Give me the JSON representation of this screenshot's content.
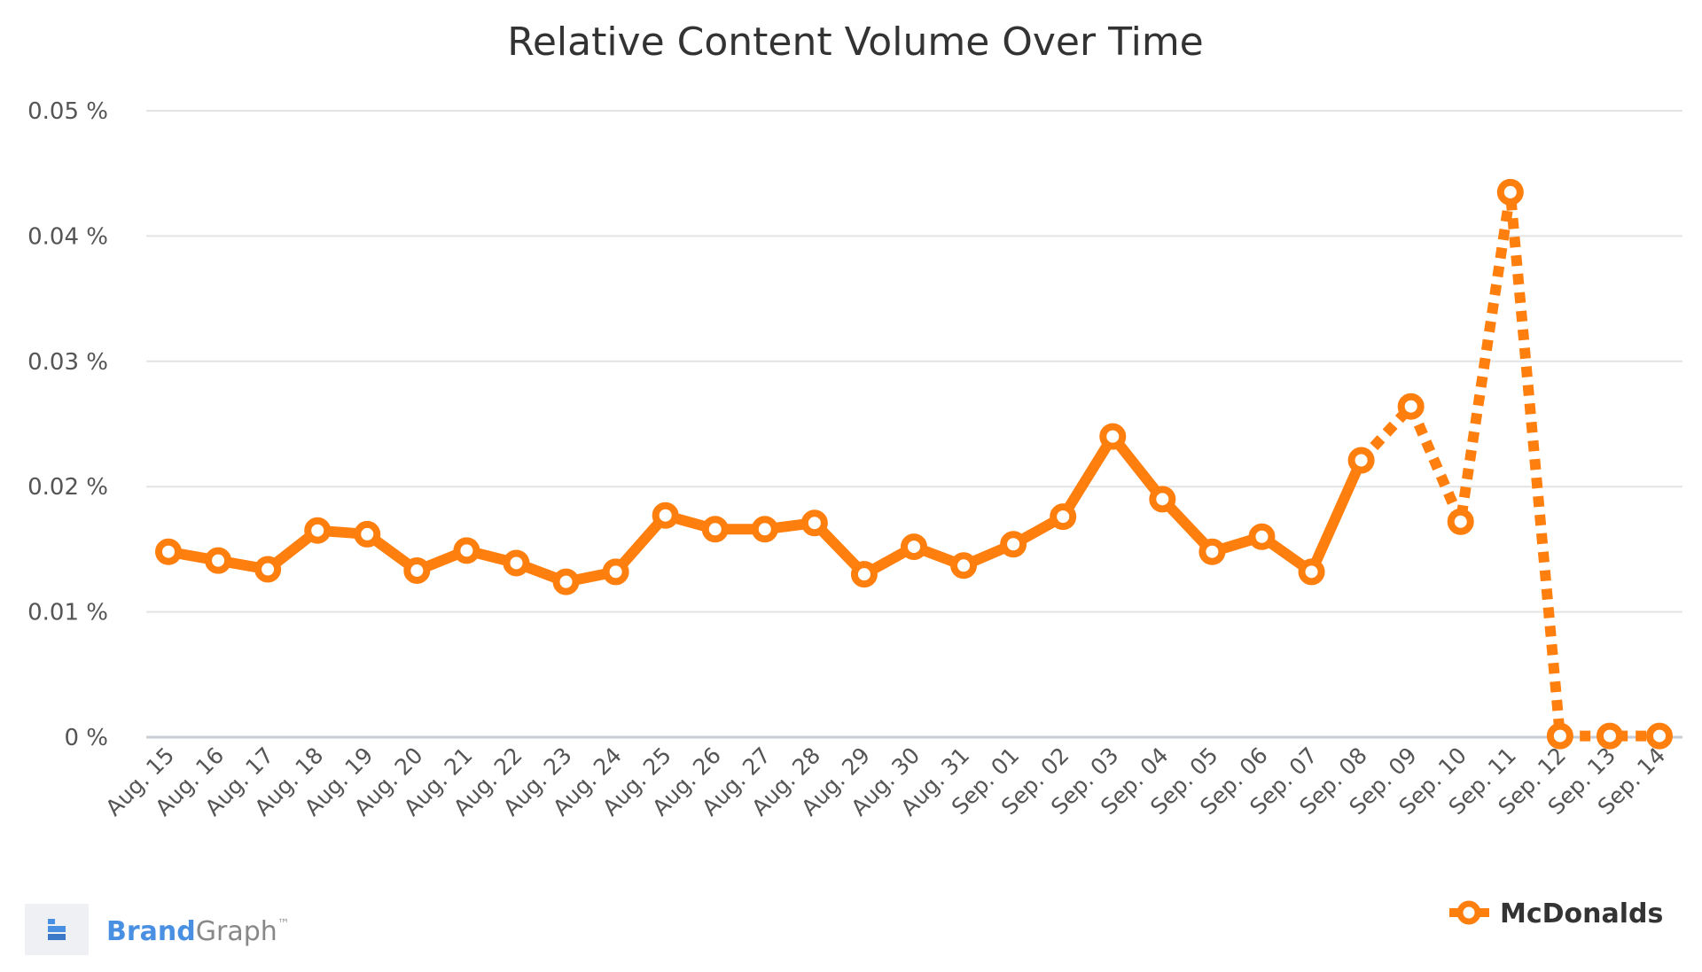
{
  "chart_data": {
    "type": "line",
    "title": "Relative Content Volume Over Time",
    "categories": [
      "Aug. 15",
      "Aug. 16",
      "Aug. 17",
      "Aug. 18",
      "Aug. 19",
      "Aug. 20",
      "Aug. 21",
      "Aug. 22",
      "Aug. 23",
      "Aug. 24",
      "Aug. 25",
      "Aug. 26",
      "Aug. 27",
      "Aug. 28",
      "Aug. 29",
      "Aug. 30",
      "Aug. 31",
      "Sep. 01",
      "Sep. 02",
      "Sep. 03",
      "Sep. 04",
      "Sep. 05",
      "Sep. 06",
      "Sep. 07",
      "Sep. 08",
      "Sep. 09",
      "Sep. 10",
      "Sep. 11",
      "Sep. 12",
      "Sep. 13",
      "Sep. 14"
    ],
    "y_ticks": [
      "0 %",
      "0.01 %",
      "0.02 %",
      "0.03 %",
      "0.04 %",
      "0.05 %"
    ],
    "ylim": [
      0,
      0.05
    ],
    "y_unit": "%",
    "grid": true,
    "legend_position": "bottom-right",
    "dashed_from_index": 24,
    "series": [
      {
        "name": "McDonalds",
        "color": "#ff7f0e",
        "values": [
          0.0148,
          0.0141,
          0.0134,
          0.0165,
          0.0162,
          0.0133,
          0.0149,
          0.0139,
          0.0124,
          0.0132,
          0.0177,
          0.0166,
          0.0166,
          0.0171,
          0.013,
          0.0152,
          0.0137,
          0.0154,
          0.0176,
          0.024,
          0.019,
          0.0148,
          0.016,
          0.0132,
          0.0221,
          0.0264,
          0.0172,
          0.0435,
          0.0001,
          0.0001,
          0.0001
        ]
      }
    ]
  },
  "branding": {
    "brand_part1": "Brand",
    "brand_part2": "Graph",
    "trademark": "™",
    "brand_color": "#4a90e2",
    "brand_color2": "#888888"
  }
}
